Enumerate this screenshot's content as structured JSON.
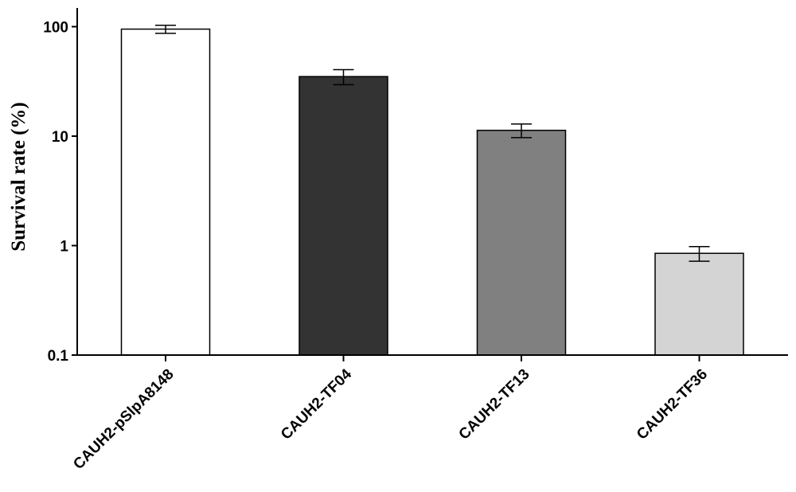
{
  "chart_data": {
    "type": "bar",
    "title": "",
    "xlabel": "",
    "ylabel": "Survival rate (%)",
    "yscale": "log",
    "ylim": [
      0.1,
      150
    ],
    "yticks": [
      {
        "value": 0.1,
        "label": "0.1"
      },
      {
        "value": 1,
        "label": "1"
      },
      {
        "value": 10,
        "label": "10"
      },
      {
        "value": 100,
        "label": "100"
      }
    ],
    "categories": [
      "CAUH2-pSlpA8148",
      "CAUH2-TF04",
      "CAUH2-TF13",
      "CAUH2-TF36"
    ],
    "values": [
      95,
      35,
      11.3,
      0.85
    ],
    "error": [
      8,
      5.5,
      1.6,
      0.13
    ],
    "colors": [
      "#ffffff",
      "#333333",
      "#808080",
      "#d4d4d4"
    ],
    "grid": false,
    "legend": "none"
  }
}
